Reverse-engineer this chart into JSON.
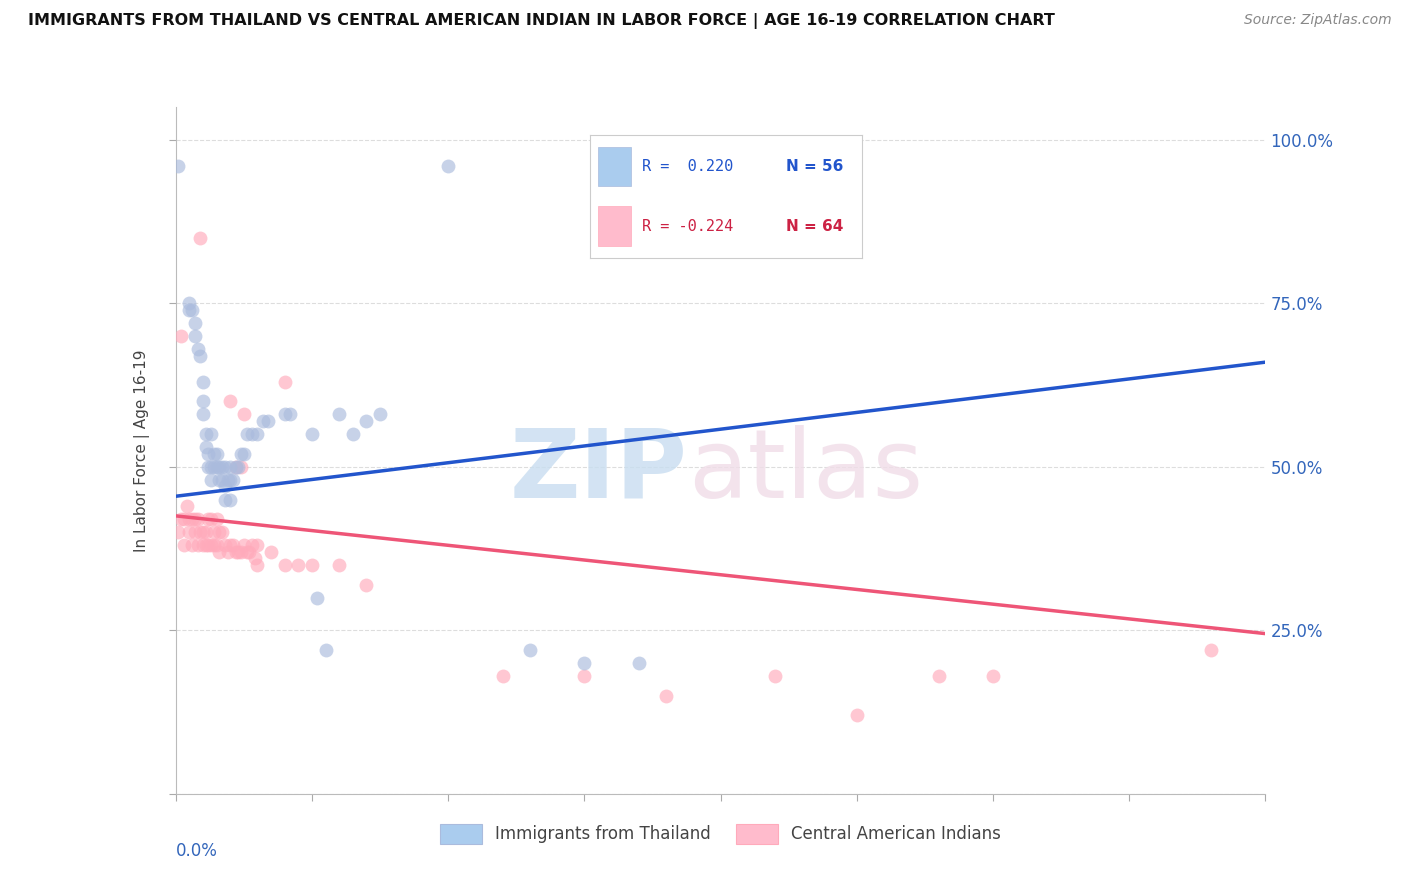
{
  "title": "IMMIGRANTS FROM THAILAND VS CENTRAL AMERICAN INDIAN IN LABOR FORCE | AGE 16-19 CORRELATION CHART",
  "source": "Source: ZipAtlas.com",
  "ylabel": "In Labor Force | Age 16-19",
  "blue_color": "#aabbdd",
  "pink_color": "#ffaabb",
  "blue_line_color": "#2255cc",
  "pink_line_color": "#ee5577",
  "blue_fill": "#aaccee",
  "pink_fill": "#ffbbcc",
  "watermark_zip_color": "#c8ddf0",
  "watermark_atlas_color": "#f0dde8",
  "xlim": [
    0.0,
    0.4
  ],
  "ylim": [
    0.0,
    1.05
  ],
  "ytick_positions": [
    0.0,
    0.25,
    0.5,
    0.75,
    1.0
  ],
  "ytick_right_labels": [
    "",
    "25.0%",
    "50.0%",
    "75.0%",
    "100.0%"
  ],
  "xtick_positions": [
    0.0,
    0.05,
    0.1,
    0.15,
    0.2,
    0.25,
    0.3,
    0.35,
    0.4
  ],
  "background_color": "#ffffff",
  "grid_color": "#dddddd",
  "legend_r_blue": "R =  0.220",
  "legend_n_blue": "N = 56",
  "legend_r_pink": "R = -0.224",
  "legend_n_pink": "N = 64",
  "legend_label_blue": "Immigrants from Thailand",
  "legend_label_pink": "Central American Indians",
  "blue_line_x0": 0.0,
  "blue_line_y0": 0.455,
  "blue_line_x1": 0.4,
  "blue_line_y1": 0.66,
  "pink_line_x0": 0.0,
  "pink_line_y0": 0.425,
  "pink_line_x1": 0.4,
  "pink_line_y1": 0.245,
  "thailand_scatter": [
    [
      0.001,
      0.96
    ],
    [
      0.005,
      0.74
    ],
    [
      0.006,
      0.74
    ],
    [
      0.007,
      0.72
    ],
    [
      0.007,
      0.7
    ],
    [
      0.008,
      0.68
    ],
    [
      0.009,
      0.67
    ],
    [
      0.01,
      0.63
    ],
    [
      0.01,
      0.6
    ],
    [
      0.01,
      0.58
    ],
    [
      0.011,
      0.55
    ],
    [
      0.011,
      0.53
    ],
    [
      0.012,
      0.52
    ],
    [
      0.012,
      0.5
    ],
    [
      0.013,
      0.55
    ],
    [
      0.013,
      0.5
    ],
    [
      0.013,
      0.48
    ],
    [
      0.014,
      0.52
    ],
    [
      0.014,
      0.5
    ],
    [
      0.015,
      0.52
    ],
    [
      0.015,
      0.5
    ],
    [
      0.016,
      0.5
    ],
    [
      0.016,
      0.48
    ],
    [
      0.017,
      0.5
    ],
    [
      0.017,
      0.48
    ],
    [
      0.018,
      0.5
    ],
    [
      0.018,
      0.47
    ],
    [
      0.018,
      0.45
    ],
    [
      0.019,
      0.48
    ],
    [
      0.02,
      0.5
    ],
    [
      0.02,
      0.48
    ],
    [
      0.02,
      0.45
    ],
    [
      0.021,
      0.48
    ],
    [
      0.022,
      0.5
    ],
    [
      0.023,
      0.5
    ],
    [
      0.024,
      0.52
    ],
    [
      0.025,
      0.52
    ],
    [
      0.026,
      0.55
    ],
    [
      0.028,
      0.55
    ],
    [
      0.03,
      0.55
    ],
    [
      0.032,
      0.57
    ],
    [
      0.034,
      0.57
    ],
    [
      0.04,
      0.58
    ],
    [
      0.042,
      0.58
    ],
    [
      0.05,
      0.55
    ],
    [
      0.052,
      0.3
    ],
    [
      0.055,
      0.22
    ],
    [
      0.06,
      0.58
    ],
    [
      0.065,
      0.55
    ],
    [
      0.07,
      0.57
    ],
    [
      0.075,
      0.58
    ],
    [
      0.1,
      0.96
    ],
    [
      0.13,
      0.22
    ],
    [
      0.15,
      0.2
    ],
    [
      0.17,
      0.2
    ],
    [
      0.005,
      0.75
    ]
  ],
  "central_scatter": [
    [
      0.001,
      0.4
    ],
    [
      0.002,
      0.7
    ],
    [
      0.002,
      0.42
    ],
    [
      0.003,
      0.42
    ],
    [
      0.003,
      0.38
    ],
    [
      0.004,
      0.44
    ],
    [
      0.005,
      0.42
    ],
    [
      0.005,
      0.4
    ],
    [
      0.006,
      0.42
    ],
    [
      0.006,
      0.38
    ],
    [
      0.007,
      0.42
    ],
    [
      0.007,
      0.4
    ],
    [
      0.008,
      0.42
    ],
    [
      0.008,
      0.38
    ],
    [
      0.009,
      0.85
    ],
    [
      0.009,
      0.4
    ],
    [
      0.01,
      0.4
    ],
    [
      0.01,
      0.38
    ],
    [
      0.011,
      0.4
    ],
    [
      0.011,
      0.38
    ],
    [
      0.012,
      0.42
    ],
    [
      0.012,
      0.38
    ],
    [
      0.013,
      0.42
    ],
    [
      0.013,
      0.38
    ],
    [
      0.014,
      0.4
    ],
    [
      0.014,
      0.38
    ],
    [
      0.015,
      0.42
    ],
    [
      0.015,
      0.38
    ],
    [
      0.016,
      0.4
    ],
    [
      0.016,
      0.37
    ],
    [
      0.017,
      0.4
    ],
    [
      0.018,
      0.38
    ],
    [
      0.019,
      0.37
    ],
    [
      0.02,
      0.38
    ],
    [
      0.021,
      0.38
    ],
    [
      0.022,
      0.5
    ],
    [
      0.022,
      0.37
    ],
    [
      0.023,
      0.37
    ],
    [
      0.024,
      0.5
    ],
    [
      0.024,
      0.37
    ],
    [
      0.025,
      0.38
    ],
    [
      0.026,
      0.37
    ],
    [
      0.027,
      0.37
    ],
    [
      0.028,
      0.38
    ],
    [
      0.029,
      0.36
    ],
    [
      0.03,
      0.38
    ],
    [
      0.03,
      0.35
    ],
    [
      0.035,
      0.37
    ],
    [
      0.04,
      0.63
    ],
    [
      0.04,
      0.35
    ],
    [
      0.045,
      0.35
    ],
    [
      0.05,
      0.35
    ],
    [
      0.06,
      0.35
    ],
    [
      0.07,
      0.32
    ],
    [
      0.02,
      0.6
    ],
    [
      0.025,
      0.58
    ],
    [
      0.12,
      0.18
    ],
    [
      0.15,
      0.18
    ],
    [
      0.18,
      0.15
    ],
    [
      0.22,
      0.18
    ],
    [
      0.25,
      0.12
    ],
    [
      0.28,
      0.18
    ],
    [
      0.3,
      0.18
    ],
    [
      0.38,
      0.22
    ]
  ]
}
